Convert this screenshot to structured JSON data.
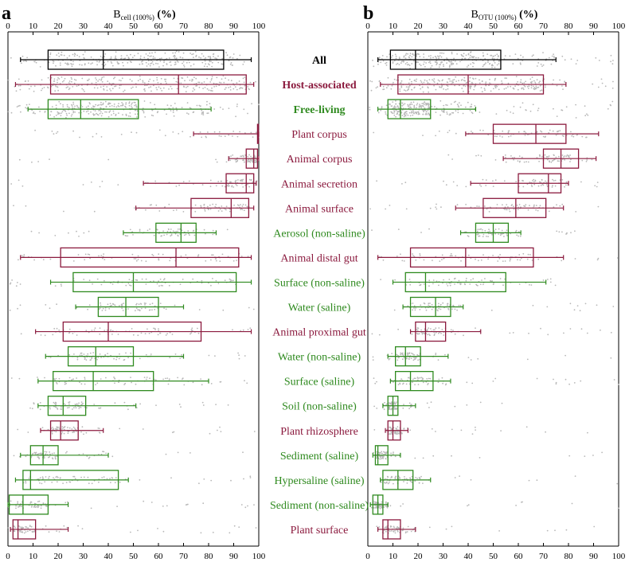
{
  "chart_data": [
    {
      "type": "box",
      "panel_letter": "a",
      "xlabel_main": "B",
      "xlabel_sub": "cell (100%)",
      "xlabel_unit": "(%)",
      "xlim": [
        0,
        100
      ],
      "ticks": [
        "0",
        "10",
        "20",
        "30",
        "40",
        "50",
        "60",
        "70",
        "80",
        "90",
        "100"
      ],
      "tick_values": [
        0,
        10,
        20,
        30,
        40,
        50,
        60,
        70,
        80,
        90,
        100
      ],
      "boxes": [
        {
          "whisker_lo": 5,
          "q1": 16,
          "median": 38,
          "q3": 86,
          "whisker_hi": 97
        },
        {
          "whisker_lo": 3,
          "q1": 17,
          "median": 68,
          "q3": 95,
          "whisker_hi": 98
        },
        {
          "whisker_lo": 8,
          "q1": 16,
          "median": 29,
          "q3": 52,
          "whisker_hi": 81
        },
        {
          "whisker_lo": 74,
          "q1": 99.5,
          "median": 99.7,
          "q3": 99.9,
          "whisker_hi": 100
        },
        {
          "whisker_lo": 88,
          "q1": 95,
          "median": 98,
          "q3": 99.5,
          "whisker_hi": 100
        },
        {
          "whisker_lo": 54,
          "q1": 87,
          "median": 95,
          "q3": 98,
          "whisker_hi": 99
        },
        {
          "whisker_lo": 51,
          "q1": 73,
          "median": 89,
          "q3": 96,
          "whisker_hi": 98
        },
        {
          "whisker_lo": 46,
          "q1": 59,
          "median": 69,
          "q3": 75,
          "whisker_hi": 83
        },
        {
          "whisker_lo": 5,
          "q1": 21,
          "median": 67,
          "q3": 92,
          "whisker_hi": 97
        },
        {
          "whisker_lo": 17,
          "q1": 26,
          "median": 50,
          "q3": 91,
          "whisker_hi": 97
        },
        {
          "whisker_lo": 27,
          "q1": 36,
          "median": 47,
          "q3": 60,
          "whisker_hi": 70
        },
        {
          "whisker_lo": 11,
          "q1": 22,
          "median": 40,
          "q3": 77,
          "whisker_hi": 97
        },
        {
          "whisker_lo": 15,
          "q1": 24,
          "median": 35,
          "q3": 50,
          "whisker_hi": 70
        },
        {
          "whisker_lo": 12,
          "q1": 18,
          "median": 34,
          "q3": 58,
          "whisker_hi": 80
        },
        {
          "whisker_lo": 12,
          "q1": 16,
          "median": 22,
          "q3": 31,
          "whisker_hi": 51
        },
        {
          "whisker_lo": 13,
          "q1": 17,
          "median": 21,
          "q3": 28,
          "whisker_hi": 38
        },
        {
          "whisker_lo": 5,
          "q1": 9,
          "median": 14,
          "q3": 20,
          "whisker_hi": 40
        },
        {
          "whisker_lo": 3,
          "q1": 6,
          "median": 9,
          "q3": 44,
          "whisker_hi": 48
        },
        {
          "whisker_lo": 0,
          "q1": 0.5,
          "median": 6,
          "q3": 16,
          "whisker_hi": 24
        },
        {
          "whisker_lo": 1,
          "q1": 2,
          "median": 4,
          "q3": 11,
          "whisker_hi": 24
        }
      ]
    },
    {
      "type": "box",
      "panel_letter": "b",
      "xlabel_main": "B",
      "xlabel_sub": "OTU (100%)",
      "xlabel_unit": "(%)",
      "xlim": [
        0,
        100
      ],
      "ticks": [
        "0",
        "10",
        "20",
        "30",
        "40",
        "50",
        "60",
        "70",
        "80",
        "90",
        "100"
      ],
      "tick_values": [
        0,
        10,
        20,
        30,
        40,
        50,
        60,
        70,
        80,
        90,
        100
      ],
      "boxes": [
        {
          "whisker_lo": 4,
          "q1": 9,
          "median": 19,
          "q3": 53,
          "whisker_hi": 75
        },
        {
          "whisker_lo": 5,
          "q1": 12,
          "median": 40,
          "q3": 70,
          "whisker_hi": 79
        },
        {
          "whisker_lo": 4,
          "q1": 8,
          "median": 13,
          "q3": 25,
          "whisker_hi": 43
        },
        {
          "whisker_lo": 39,
          "q1": 50,
          "median": 67,
          "q3": 79,
          "whisker_hi": 92
        },
        {
          "whisker_lo": 54,
          "q1": 70,
          "median": 77,
          "q3": 84,
          "whisker_hi": 91
        },
        {
          "whisker_lo": 41,
          "q1": 60,
          "median": 72,
          "q3": 77,
          "whisker_hi": 80
        },
        {
          "whisker_lo": 35,
          "q1": 46,
          "median": 59,
          "q3": 71,
          "whisker_hi": 78
        },
        {
          "whisker_lo": 37,
          "q1": 43,
          "median": 50,
          "q3": 56,
          "whisker_hi": 61
        },
        {
          "whisker_lo": 4,
          "q1": 17,
          "median": 39,
          "q3": 66,
          "whisker_hi": 78
        },
        {
          "whisker_lo": 10,
          "q1": 15,
          "median": 23,
          "q3": 55,
          "whisker_hi": 71
        },
        {
          "whisker_lo": 14,
          "q1": 17,
          "median": 27,
          "q3": 33,
          "whisker_hi": 38
        },
        {
          "whisker_lo": 17,
          "q1": 19,
          "median": 23,
          "q3": 31,
          "whisker_hi": 45
        },
        {
          "whisker_lo": 8,
          "q1": 11,
          "median": 15,
          "q3": 21,
          "whisker_hi": 32
        },
        {
          "whisker_lo": 9,
          "q1": 11,
          "median": 17,
          "q3": 26,
          "whisker_hi": 33
        },
        {
          "whisker_lo": 6,
          "q1": 8,
          "median": 10,
          "q3": 12,
          "whisker_hi": 19
        },
        {
          "whisker_lo": 7,
          "q1": 8,
          "median": 10,
          "q3": 13,
          "whisker_hi": 16
        },
        {
          "whisker_lo": 2,
          "q1": 3,
          "median": 4,
          "q3": 8,
          "whisker_hi": 13
        },
        {
          "whisker_lo": 5,
          "q1": 6,
          "median": 12,
          "q3": 18,
          "whisker_hi": 25
        },
        {
          "whisker_lo": 1,
          "q1": 2,
          "median": 4,
          "q3": 6,
          "whisker_hi": 8
        },
        {
          "whisker_lo": 4,
          "q1": 6,
          "median": 8,
          "q3": 13,
          "whisker_hi": 19
        }
      ]
    }
  ],
  "categories": [
    {
      "label": "All",
      "color": "#000000",
      "bold": true
    },
    {
      "label": "Host-associated",
      "color": "#8b1a3e",
      "bold": true
    },
    {
      "label": "Free-living",
      "color": "#2f8a1f",
      "bold": true
    },
    {
      "label": "Plant corpus",
      "color": "#8b1a3e",
      "bold": false
    },
    {
      "label": "Animal corpus",
      "color": "#8b1a3e",
      "bold": false
    },
    {
      "label": "Animal secretion",
      "color": "#8b1a3e",
      "bold": false
    },
    {
      "label": "Animal surface",
      "color": "#8b1a3e",
      "bold": false
    },
    {
      "label": "Aerosol (non-saline)",
      "color": "#2f8a1f",
      "bold": false
    },
    {
      "label": "Animal distal gut",
      "color": "#8b1a3e",
      "bold": false
    },
    {
      "label": "Surface (non-saline)",
      "color": "#2f8a1f",
      "bold": false
    },
    {
      "label": "Water (saline)",
      "color": "#2f8a1f",
      "bold": false
    },
    {
      "label": "Animal proximal gut",
      "color": "#8b1a3e",
      "bold": false
    },
    {
      "label": "Water (non-saline)",
      "color": "#2f8a1f",
      "bold": false
    },
    {
      "label": "Surface (saline)",
      "color": "#2f8a1f",
      "bold": false
    },
    {
      "label": "Soil (non-saline)",
      "color": "#2f8a1f",
      "bold": false
    },
    {
      "label": "Plant rhizosphere",
      "color": "#8b1a3e",
      "bold": false
    },
    {
      "label": "Sediment (saline)",
      "color": "#2f8a1f",
      "bold": false
    },
    {
      "label": "Hypersaline (saline)",
      "color": "#2f8a1f",
      "bold": false
    },
    {
      "label": "Sediment (non-saline)",
      "color": "#2f8a1f",
      "bold": false
    },
    {
      "label": "Plant surface",
      "color": "#8b1a3e",
      "bold": false
    }
  ],
  "colors": {
    "host": "#8b1a3e",
    "free": "#2f8a1f",
    "all": "#000000",
    "points": "#b8b8b8"
  }
}
